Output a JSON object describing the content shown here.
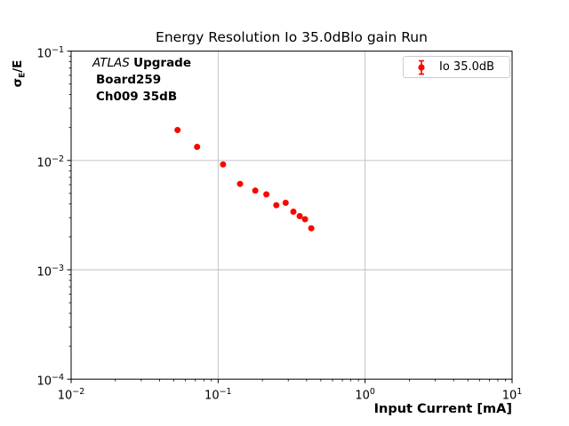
{
  "chart_data": {
    "type": "scatter",
    "title": "Energy Resolution Io 35.0dBlo gain Run",
    "xlabel": "Input Current [mA]",
    "ylabel": {
      "sigma": "σ",
      "sub": "E",
      "rest": "/E"
    },
    "xscale": "log",
    "yscale": "log",
    "xlim": [
      0.01,
      10
    ],
    "ylim": [
      0.0001,
      0.1
    ],
    "grid": "major",
    "legend_position": "upper right",
    "x_ticks": [
      {
        "exp": -2,
        "base": "10",
        "sup": "−2"
      },
      {
        "exp": -1,
        "base": "10",
        "sup": "−1"
      },
      {
        "exp": 0,
        "base": "10",
        "sup": "0"
      },
      {
        "exp": 1,
        "base": "10",
        "sup": "1"
      }
    ],
    "y_ticks": [
      {
        "exp": -1,
        "base": "10",
        "sup": "−1"
      },
      {
        "exp": -2,
        "base": "10",
        "sup": "−2"
      },
      {
        "exp": -3,
        "base": "10",
        "sup": "−3"
      },
      {
        "exp": -4,
        "base": "10",
        "sup": "−4"
      }
    ],
    "series": [
      {
        "name": "Io 35.0dB",
        "color": "#ff0000",
        "marker": "circle-with-errorbar",
        "x": [
          0.053,
          0.072,
          0.108,
          0.141,
          0.179,
          0.213,
          0.249,
          0.288,
          0.325,
          0.359,
          0.39,
          0.43
        ],
        "y": [
          0.019,
          0.0133,
          0.0092,
          0.0061,
          0.0053,
          0.0049,
          0.0039,
          0.0041,
          0.0034,
          0.0031,
          0.0029,
          0.0024
        ]
      }
    ]
  },
  "annotation": {
    "line1_italic": "ATLAS ",
    "line1_bold": "Upgrade",
    "line2": "Board259",
    "line3": "Ch009 35dB"
  },
  "legend": {
    "label": "Io 35.0dB"
  },
  "colors": {
    "accent": "#ff0000",
    "grid": "#bdbdbd",
    "spine": "#000000",
    "legend_border": "#cccccc",
    "text": "#000000"
  }
}
